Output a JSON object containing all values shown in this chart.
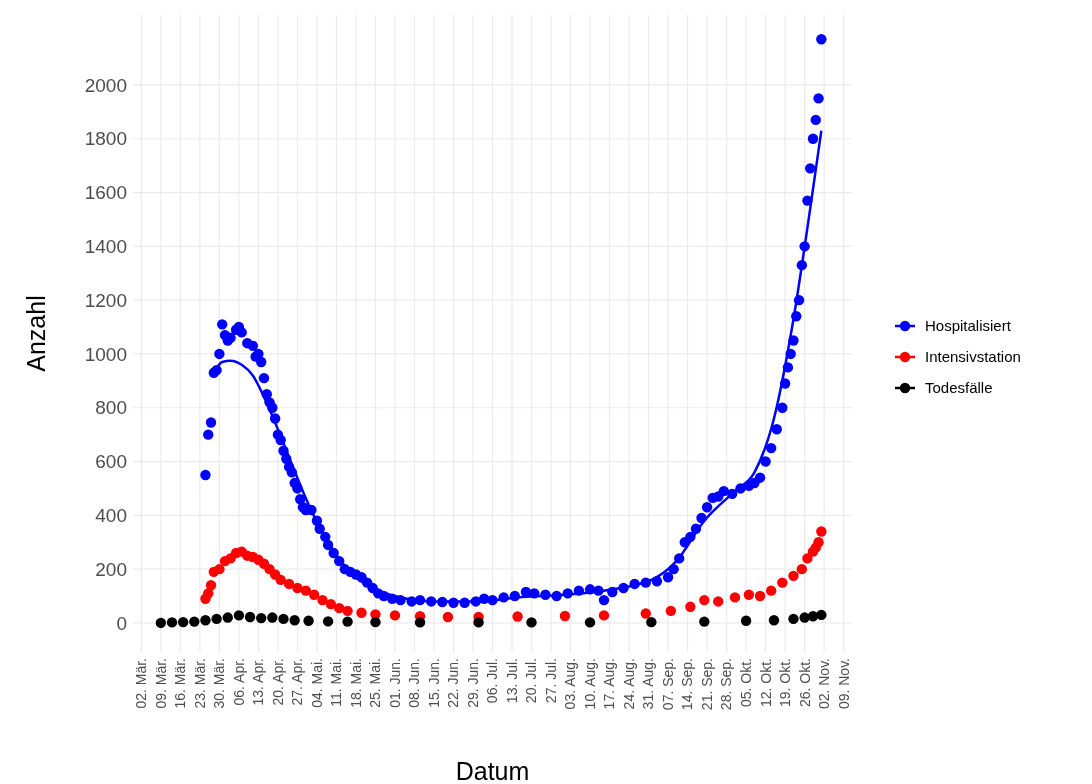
{
  "chart_data": {
    "type": "scatter",
    "xlabel": "Datum",
    "ylabel": "Anzahl",
    "xlim": [
      "--02-28",
      "--11-12"
    ],
    "ylim": [
      -108,
      2260
    ],
    "xticks": [
      {
        "value": "--03-02",
        "label": "02. Mär."
      },
      {
        "value": "--03-09",
        "label": "09. Mär."
      },
      {
        "value": "--03-16",
        "label": "16. Mär."
      },
      {
        "value": "--03-23",
        "label": "23. Mär."
      },
      {
        "value": "--03-30",
        "label": "30. Mär."
      },
      {
        "value": "--04-06",
        "label": "06. Apr."
      },
      {
        "value": "--04-13",
        "label": "13. Apr."
      },
      {
        "value": "--04-20",
        "label": "20. Apr."
      },
      {
        "value": "--04-27",
        "label": "27. Apr."
      },
      {
        "value": "--05-04",
        "label": "04. Mai."
      },
      {
        "value": "--05-11",
        "label": "11. Mai."
      },
      {
        "value": "--05-18",
        "label": "18. Mai."
      },
      {
        "value": "--05-25",
        "label": "25. Mai."
      },
      {
        "value": "--06-01",
        "label": "01. Jun."
      },
      {
        "value": "--06-08",
        "label": "08. Jun."
      },
      {
        "value": "--06-15",
        "label": "15. Jun."
      },
      {
        "value": "--06-22",
        "label": "22. Jun."
      },
      {
        "value": "--06-29",
        "label": "29. Jun."
      },
      {
        "value": "--07-06",
        "label": "06. Jul."
      },
      {
        "value": "--07-13",
        "label": "13. Jul."
      },
      {
        "value": "--07-20",
        "label": "20. Jul."
      },
      {
        "value": "--07-27",
        "label": "27. Jul."
      },
      {
        "value": "--08-03",
        "label": "03. Aug."
      },
      {
        "value": "--08-10",
        "label": "10. Aug."
      },
      {
        "value": "--08-17",
        "label": "17. Aug."
      },
      {
        "value": "--08-24",
        "label": "24. Aug."
      },
      {
        "value": "--08-31",
        "label": "31. Aug."
      },
      {
        "value": "--09-07",
        "label": "07. Sep."
      },
      {
        "value": "--09-14",
        "label": "14. Sep."
      },
      {
        "value": "--09-21",
        "label": "21. Sep."
      },
      {
        "value": "--09-28",
        "label": "28. Sep."
      },
      {
        "value": "--10-05",
        "label": "05. Okt."
      },
      {
        "value": "--10-12",
        "label": "12. Okt."
      },
      {
        "value": "--10-19",
        "label": "19. Okt."
      },
      {
        "value": "--10-26",
        "label": "26. Okt."
      },
      {
        "value": "--11-02",
        "label": "02. Nov."
      },
      {
        "value": "--11-09",
        "label": "09. Nov."
      }
    ],
    "yticks": [
      0,
      200,
      400,
      600,
      800,
      1000,
      1200,
      1400,
      1600,
      1800,
      2000
    ],
    "grid": true,
    "legend": "right",
    "series": [
      {
        "name": "Hospitalisiert",
        "color": "#0000ff",
        "marker": "circle",
        "x": [
          "--03-25",
          "--03-26",
          "--03-27",
          "--03-28",
          "--03-29",
          "--03-30",
          "--03-31",
          "--04-01",
          "--04-02",
          "--04-03",
          "--04-05",
          "--04-06",
          "--04-07",
          "--04-09",
          "--04-11",
          "--04-12",
          "--04-13",
          "--04-14",
          "--04-15",
          "--04-16",
          "--04-17",
          "--04-18",
          "--04-19",
          "--04-20",
          "--04-21",
          "--04-22",
          "--04-23",
          "--04-24",
          "--04-25",
          "--04-26",
          "--04-27",
          "--04-28",
          "--04-29",
          "--04-30",
          "--05-02",
          "--05-04",
          "--05-05",
          "--05-07",
          "--05-08",
          "--05-10",
          "--05-12",
          "--05-14",
          "--05-16",
          "--05-18",
          "--05-20",
          "--05-22",
          "--05-24",
          "--05-26",
          "--05-28",
          "--05-31",
          "--06-03",
          "--06-07",
          "--06-10",
          "--06-14",
          "--06-18",
          "--06-22",
          "--06-26",
          "--06-30",
          "--07-03",
          "--07-06",
          "--07-10",
          "--07-14",
          "--07-18",
          "--07-21",
          "--07-25",
          "--07-29",
          "--08-02",
          "--08-06",
          "--08-10",
          "--08-13",
          "--08-15",
          "--08-18",
          "--08-22",
          "--08-26",
          "--08-30",
          "--09-03",
          "--09-07",
          "--09-09",
          "--09-11",
          "--09-13",
          "--09-15",
          "--09-17",
          "--09-19",
          "--09-21",
          "--09-23",
          "--09-25",
          "--09-27",
          "--09-30",
          "--10-03",
          "--10-06",
          "--10-08",
          "--10-10",
          "--10-12",
          "--10-14",
          "--10-16",
          "--10-18",
          "--10-19",
          "--10-20",
          "--10-21",
          "--10-22",
          "--10-23",
          "--10-24",
          "--10-25",
          "--10-26",
          "--10-27",
          "--10-28",
          "--10-29",
          "--10-30",
          "--10-31",
          "--11-01"
        ],
        "values": [
          550,
          700,
          745,
          930,
          940,
          1000,
          1110,
          1070,
          1050,
          1060,
          1090,
          1100,
          1080,
          1040,
          1030,
          990,
          1000,
          970,
          910,
          850,
          820,
          800,
          760,
          700,
          680,
          640,
          610,
          580,
          560,
          520,
          500,
          460,
          430,
          420,
          420,
          380,
          350,
          320,
          290,
          260,
          230,
          200,
          190,
          180,
          170,
          150,
          130,
          110,
          100,
          90,
          85,
          80,
          85,
          80,
          78,
          75,
          75,
          80,
          90,
          85,
          95,
          100,
          115,
          110,
          105,
          100,
          110,
          120,
          125,
          120,
          85,
          115,
          130,
          145,
          150,
          155,
          170,
          200,
          240,
          300,
          320,
          350,
          390,
          430,
          465,
          470,
          490,
          480,
          500,
          510,
          520,
          540,
          600,
          650,
          720,
          800,
          890,
          950,
          1000,
          1050,
          1140,
          1200,
          1330,
          1400,
          1570,
          1690,
          1800,
          1870,
          1950,
          2170
        ]
      },
      {
        "name": "Intensivstation",
        "color": "#ff0000",
        "marker": "circle",
        "x": [
          "--03-25",
          "--03-26",
          "--03-27",
          "--03-28",
          "--03-30",
          "--04-01",
          "--04-03",
          "--04-05",
          "--04-07",
          "--04-09",
          "--04-11",
          "--04-13",
          "--04-15",
          "--04-17",
          "--04-19",
          "--04-21",
          "--04-24",
          "--04-27",
          "--04-30",
          "--05-03",
          "--05-06",
          "--05-09",
          "--05-12",
          "--05-15",
          "--05-20",
          "--05-25",
          "--06-01",
          "--06-10",
          "--06-20",
          "--07-01",
          "--07-15",
          "--08-01",
          "--08-15",
          "--08-30",
          "--09-08",
          "--09-15",
          "--09-20",
          "--09-25",
          "--10-01",
          "--10-06",
          "--10-10",
          "--10-14",
          "--10-18",
          "--10-22",
          "--10-25",
          "--10-27",
          "--10-29",
          "--10-30",
          "--10-31",
          "--11-01"
        ],
        "values": [
          90,
          110,
          140,
          190,
          200,
          230,
          240,
          260,
          265,
          250,
          245,
          235,
          220,
          200,
          180,
          160,
          145,
          130,
          120,
          105,
          85,
          70,
          55,
          45,
          38,
          32,
          28,
          25,
          22,
          22,
          24,
          26,
          28,
          35,
          45,
          60,
          85,
          80,
          95,
          105,
          100,
          120,
          150,
          175,
          200,
          240,
          265,
          280,
          300,
          340
        ]
      },
      {
        "name": "Todesfälle",
        "color": "#000000",
        "marker": "circle",
        "x": [
          "--03-09",
          "--03-13",
          "--03-17",
          "--03-21",
          "--03-25",
          "--03-29",
          "--04-02",
          "--04-06",
          "--04-10",
          "--04-14",
          "--04-18",
          "--04-22",
          "--04-26",
          "--05-01",
          "--05-08",
          "--05-15",
          "--05-25",
          "--06-10",
          "--07-01",
          "--07-20",
          "--08-10",
          "--09-01",
          "--09-20",
          "--10-05",
          "--10-15",
          "--10-22",
          "--10-26",
          "--10-29",
          "--11-01"
        ],
        "values": [
          0,
          2,
          3,
          5,
          10,
          15,
          20,
          28,
          22,
          18,
          20,
          15,
          10,
          8,
          6,
          5,
          3,
          2,
          2,
          2,
          2,
          3,
          5,
          8,
          10,
          15,
          20,
          25,
          30
        ]
      },
      {
        "type": "line",
        "color": "#0000ff",
        "marker": "none",
        "x": [
          "--03-28",
          "--03-31",
          "--04-03",
          "--04-07",
          "--04-11",
          "--04-15",
          "--04-20",
          "--04-25",
          "--05-01",
          "--05-08",
          "--05-15",
          "--05-22",
          "--06-01",
          "--06-15",
          "--07-01",
          "--07-15",
          "--08-01",
          "--08-15",
          "--09-01",
          "--09-10",
          "--09-20",
          "--10-01",
          "--10-08",
          "--10-15",
          "--10-22",
          "--10-28",
          "--11-01"
        ],
        "values": [
          930,
          970,
          975,
          960,
          920,
          840,
          720,
          590,
          440,
          300,
          200,
          140,
          100,
          80,
          80,
          95,
          105,
          120,
          160,
          230,
          380,
          490,
          560,
          760,
          1130,
          1540,
          1830
        ]
      }
    ]
  }
}
